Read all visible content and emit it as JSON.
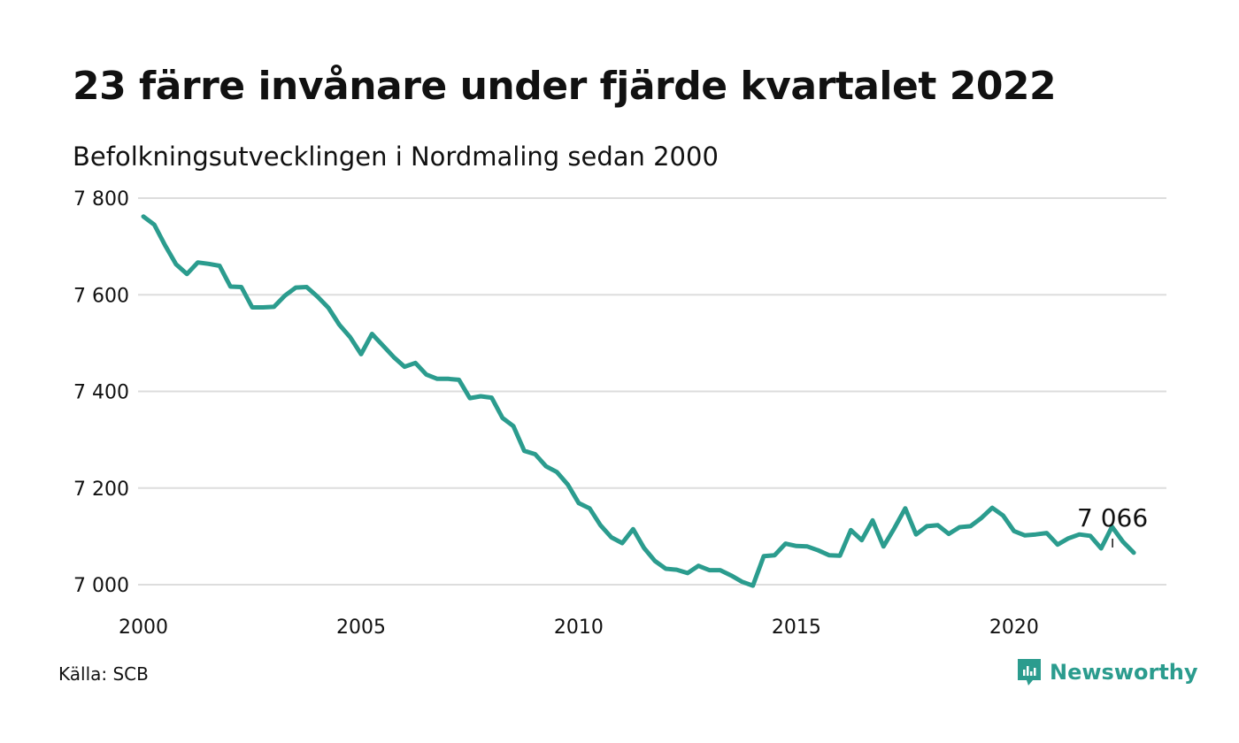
{
  "title": "23 färre invånare under fjärde kvartalet 2022",
  "subtitle": "Befolkningsutvecklingen i Nordmaling sedan 2000",
  "source": "Källa: SCB",
  "brand": {
    "name": "Newsworthy",
    "icon": "newsworthy-logo-icon"
  },
  "colors": {
    "line": "#2b9c8e",
    "grid": "#dddddd",
    "text": "#111111",
    "brand": "#2b9c8e"
  },
  "chart_data": {
    "type": "line",
    "grid": true,
    "ylim": [
      7000,
      7800
    ],
    "yticks": [
      7000,
      7200,
      7400,
      7600,
      7800
    ],
    "ytick_labels": [
      "7 000",
      "7 200",
      "7 400",
      "7 600",
      "7 800"
    ],
    "xticks": [
      2000,
      2005,
      2010,
      2015,
      2020
    ],
    "xtick_labels": [
      "2000",
      "2005",
      "2010",
      "2015",
      "2020"
    ],
    "xlim": [
      2000,
      2023.5
    ],
    "annotation": {
      "label": "7 066",
      "x": 2022.75,
      "y": 7066
    },
    "series": [
      {
        "x": [
          2000,
          2000.25,
          2000.5,
          2000.75,
          2001,
          2001.25,
          2001.5,
          2001.75,
          2002,
          2002.25,
          2002.5,
          2002.75,
          2003,
          2003.25,
          2003.5,
          2003.75,
          2004,
          2004.25,
          2004.5,
          2004.75,
          2005,
          2005.25,
          2005.5,
          2005.75,
          2006,
          2006.25,
          2006.5,
          2006.75,
          2007,
          2007.25,
          2007.5,
          2007.75,
          2008,
          2008.25,
          2008.5,
          2008.75,
          2009,
          2009.25,
          2009.5,
          2009.75,
          2010,
          2010.25,
          2010.5,
          2010.75,
          2011,
          2011.25,
          2011.5,
          2011.75,
          2012,
          2012.25,
          2012.5,
          2012.75,
          2013,
          2013.25,
          2013.5,
          2013.75,
          2014,
          2014.25,
          2014.5,
          2014.75,
          2015,
          2015.25,
          2015.5,
          2015.75,
          2016,
          2016.25,
          2016.5,
          2016.75,
          2017,
          2017.25,
          2017.5,
          2017.75,
          2018,
          2018.25,
          2018.5,
          2018.75,
          2019,
          2019.25,
          2019.5,
          2019.75,
          2020,
          2020.25,
          2020.5,
          2020.75,
          2021,
          2021.25,
          2021.5,
          2021.75,
          2022,
          2022.25,
          2022.5,
          2022.75
        ],
        "values": [
          7762,
          7745,
          7702,
          7663,
          7643,
          7667,
          7664,
          7660,
          7617,
          7616,
          7574,
          7574,
          7575,
          7598,
          7615,
          7616,
          7596,
          7573,
          7538,
          7512,
          7477,
          7519,
          7495,
          7471,
          7451,
          7459,
          7435,
          7426,
          7426,
          7424,
          7386,
          7390,
          7387,
          7345,
          7328,
          7277,
          7270,
          7245,
          7233,
          7207,
          7169,
          7158,
          7123,
          7098,
          7086,
          7115,
          7076,
          7049,
          7033,
          7031,
          7024,
          7039,
          7030,
          7030,
          7019,
          7006,
          6998,
          7059,
          7061,
          7085,
          7080,
          7079,
          7071,
          7061,
          7060,
          7113,
          7092,
          7133,
          7079,
          7117,
          7158,
          7104,
          7121,
          7123,
          7105,
          7119,
          7121,
          7138,
          7159,
          7143,
          7111,
          7102,
          7104,
          7107,
          7083,
          7096,
          7104,
          7101,
          7075,
          7120,
          7089,
          7066
        ]
      }
    ]
  }
}
